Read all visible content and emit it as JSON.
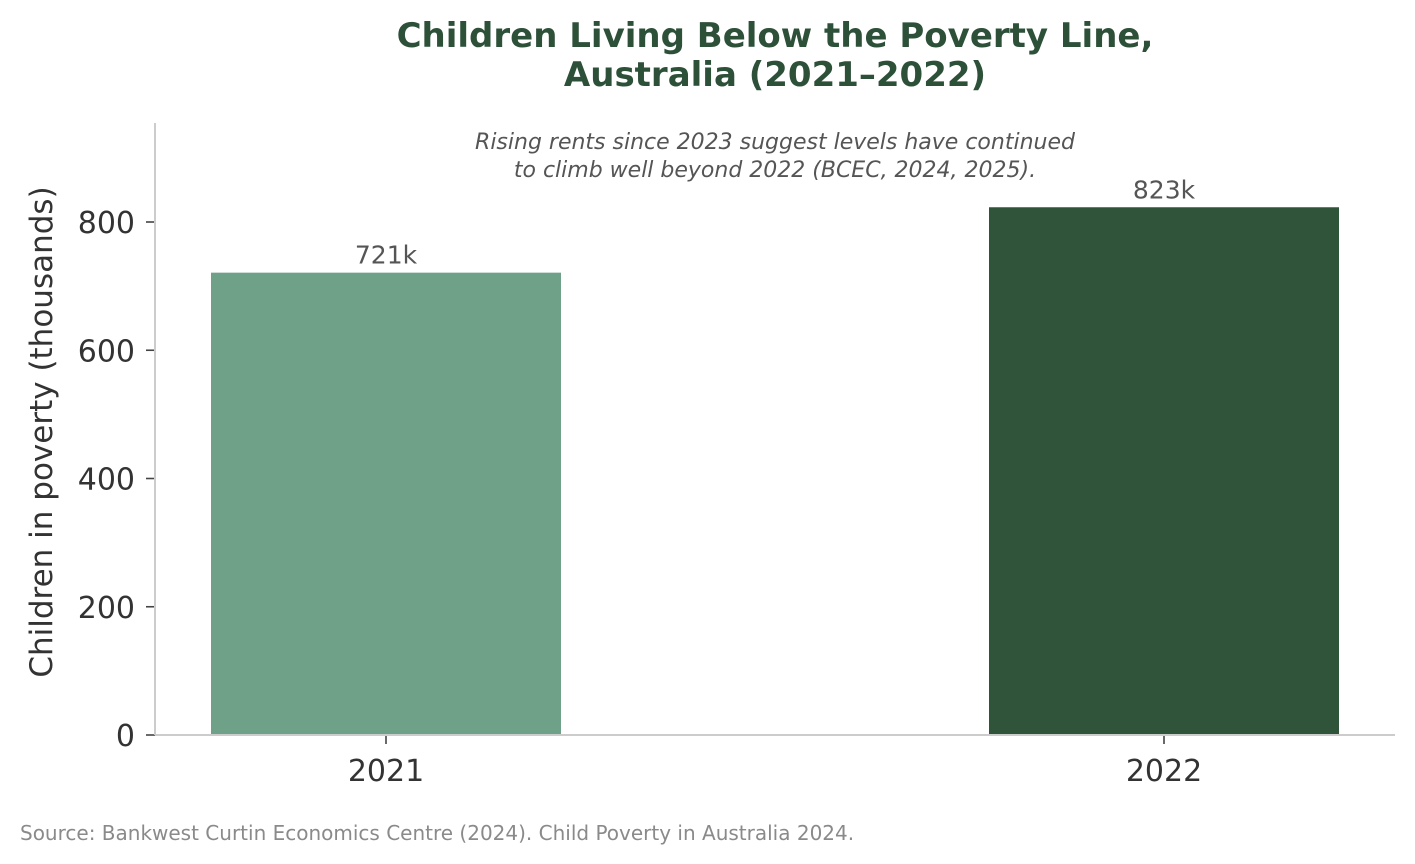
{
  "chart_data": {
    "type": "bar",
    "title_lines": [
      "Children Living Below the Poverty Line,",
      "Australia (2021–2022)"
    ],
    "categories": [
      "2021",
      "2022"
    ],
    "values": [
      721,
      823
    ],
    "data_labels": [
      "721k",
      "823k"
    ],
    "colors": [
      "#6fa088",
      "#2f5439"
    ],
    "ylabel": "Children in poverty (thousands)",
    "xlabel": "",
    "ylim": [
      0,
      950
    ],
    "yticks": [
      0,
      200,
      400,
      600,
      800
    ],
    "grid": false,
    "annotation_lines": [
      "Rising rents since 2023 suggest levels have continued",
      "to climb well beyond 2022 (BCEC, 2024, 2025)."
    ]
  },
  "source": "Source: Bankwest Curtin Economics Centre (2024). Child Poverty in Australia 2024."
}
